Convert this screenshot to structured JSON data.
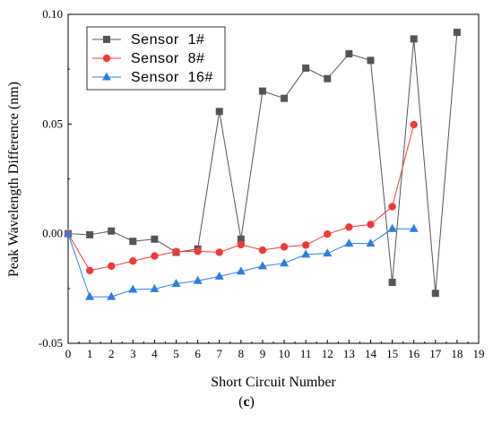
{
  "chart_data": {
    "type": "line",
    "xlabel": "Short Circuit Number",
    "ylabel": "Peak Wavelength Difference (nm)",
    "xlim": [
      0,
      19
    ],
    "ylim": [
      -0.05,
      0.1
    ],
    "xticks": [
      0,
      1,
      2,
      3,
      4,
      5,
      6,
      7,
      8,
      9,
      10,
      11,
      12,
      13,
      14,
      15,
      16,
      17,
      18,
      19
    ],
    "yticks": [
      -0.05,
      0.0,
      0.05,
      0.1
    ],
    "ytick_labels": [
      "-0.05",
      "0.00",
      "0.05",
      "0.10"
    ],
    "grid": false,
    "legend_position": "top-left",
    "series": [
      {
        "name": "Sensor  1#",
        "color": "#555555",
        "marker": "square",
        "x": [
          0,
          1,
          2,
          3,
          4,
          5,
          6,
          7,
          8,
          9,
          10,
          11,
          12,
          13,
          14,
          15,
          16,
          17,
          18
        ],
        "values": [
          0.0,
          -0.0005,
          0.0012,
          -0.0035,
          -0.0025,
          -0.0085,
          -0.007,
          0.0557,
          -0.0025,
          0.065,
          0.0617,
          0.0755,
          0.0707,
          0.082,
          0.079,
          -0.0222,
          0.0888,
          -0.0272,
          0.0918
        ]
      },
      {
        "name": "Sensor  8#",
        "color": "#f03a3a",
        "marker": "circle",
        "x": [
          0,
          1,
          2,
          3,
          4,
          5,
          6,
          7,
          8,
          9,
          10,
          11,
          12,
          13,
          14,
          15,
          16
        ],
        "values": [
          0.0,
          -0.0168,
          -0.0148,
          -0.0125,
          -0.0102,
          -0.0082,
          -0.008,
          -0.0085,
          -0.005,
          -0.0075,
          -0.006,
          -0.0052,
          -0.0002,
          0.003,
          0.0042,
          0.0123,
          0.0497
        ]
      },
      {
        "name": "Sensor  16#",
        "color": "#2a7fe0",
        "marker": "triangle",
        "x": [
          0,
          1,
          2,
          3,
          4,
          5,
          6,
          7,
          8,
          9,
          10,
          11,
          12,
          13,
          14,
          15,
          16
        ],
        "values": [
          0.0,
          -0.0288,
          -0.0288,
          -0.0255,
          -0.0252,
          -0.0228,
          -0.0215,
          -0.0195,
          -0.0172,
          -0.0148,
          -0.0135,
          -0.0095,
          -0.009,
          -0.0045,
          -0.0045,
          0.0022,
          0.0022
        ]
      }
    ]
  },
  "caption": {
    "text": "(c)"
  }
}
